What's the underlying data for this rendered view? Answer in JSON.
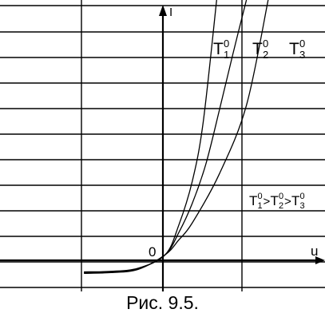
{
  "caption": "Рис. 9.5.",
  "chart_data": {
    "type": "line",
    "xlabel": "u",
    "ylabel": "I",
    "origin_label": "0",
    "grid": true,
    "series": [
      {
        "name": "T",
        "subscript": "1",
        "superscript": "0",
        "color": "#000000",
        "x": [
          -3.0,
          -2.0,
          -1.0,
          0.0,
          0.5,
          1.0,
          1.4,
          1.9
        ],
        "y": [
          -0.7,
          -0.68,
          -0.55,
          0.0,
          1.2,
          3.0,
          5.4,
          10.4
        ]
      },
      {
        "name": "T",
        "subscript": "2",
        "superscript": "0",
        "color": "#000000",
        "x": [
          -3.0,
          -2.0,
          -1.0,
          0.0,
          0.5,
          1.0,
          1.5,
          2.0,
          2.5,
          3.0
        ],
        "y": [
          -0.73,
          -0.7,
          -0.58,
          0.0,
          0.9,
          2.1,
          3.7,
          5.9,
          8.2,
          10.4
        ]
      },
      {
        "name": "T",
        "subscript": "3",
        "superscript": "0",
        "color": "#000000",
        "x": [
          -3.0,
          -2.0,
          -1.0,
          0.0,
          0.5,
          1.0,
          2.0,
          3.0,
          3.8
        ],
        "y": [
          -0.76,
          -0.73,
          -0.6,
          0.0,
          0.6,
          1.3,
          3.3,
          6.1,
          10.4
        ]
      }
    ],
    "annotation": {
      "parts": [
        [
          "T",
          "1",
          "0"
        ],
        [
          ">"
        ],
        [
          "T",
          "2",
          "0"
        ],
        [
          ">"
        ],
        [
          "T",
          "3",
          "0"
        ]
      ]
    },
    "xlim": [
      -6.1,
      5.9
    ],
    "ylim": [
      -1.5,
      10.4
    ]
  }
}
